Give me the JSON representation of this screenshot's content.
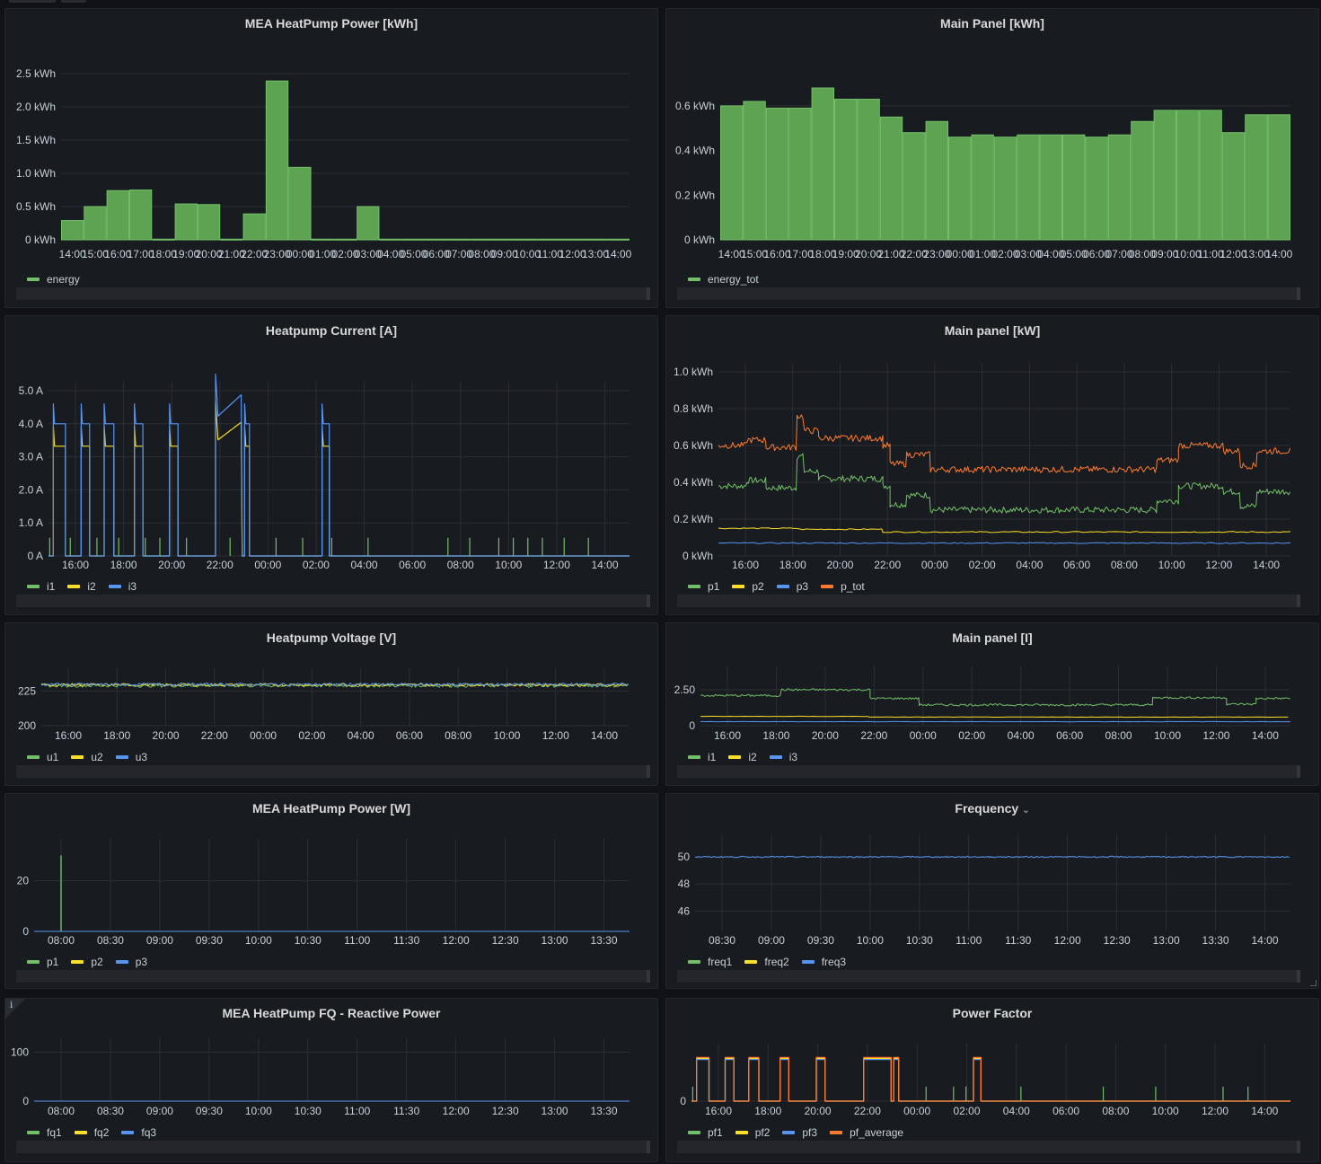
{
  "colors": {
    "green": "#73bf69",
    "yellow": "#fade2a",
    "blue": "#5794f2",
    "orange": "#ff7a2f",
    "barFill": "#5da352",
    "barStroke": "#73bf69",
    "grid": "#2c2e33"
  },
  "panels": [
    {
      "title": "MEA HeatPump Power [kWh]",
      "chart_data": {
        "type": "bar",
        "title": "MEA HeatPump Power [kWh]",
        "unit": "kWh",
        "ylim": [
          0,
          2.5
        ],
        "yticks": [
          "0 kWh",
          "0.5 kWh",
          "1.0 kWh",
          "1.5 kWh",
          "2.0 kWh",
          "2.5 kWh"
        ],
        "categories": [
          "14:00",
          "15:00",
          "16:00",
          "17:00",
          "18:00",
          "19:00",
          "20:00",
          "21:00",
          "22:00",
          "23:00",
          "00:00",
          "01:00",
          "02:00",
          "03:00",
          "04:00",
          "05:00",
          "06:00",
          "07:00",
          "08:00",
          "09:00",
          "10:00",
          "11:00",
          "12:00",
          "13:00",
          "14:00"
        ],
        "series": [
          {
            "name": "energy",
            "values": [
              0.29,
              0.5,
              0.74,
              0.75,
              0.01,
              0.54,
              0.53,
              0.01,
              0.39,
              2.39,
              1.09,
              0.01,
              0.01,
              0.5,
              0.01,
              0.01,
              0.01,
              0.01,
              0.01,
              0.01,
              0.01,
              0.01,
              0.01,
              0.01,
              0.01
            ]
          }
        ],
        "grid": true,
        "legend": "bottom-left"
      }
    },
    {
      "title": "Main Panel [kWh]",
      "chart_data": {
        "type": "bar",
        "title": "Main Panel [kWh]",
        "unit": "kWh",
        "ylim": [
          0,
          0.68
        ],
        "yticks": [
          "0 kWh",
          "0.2 kWh",
          "0.4 kWh",
          "0.6 kWh"
        ],
        "categories": [
          "14:00",
          "15:00",
          "16:00",
          "17:00",
          "18:00",
          "19:00",
          "20:00",
          "21:00",
          "22:00",
          "23:00",
          "00:00",
          "01:00",
          "02:00",
          "03:00",
          "04:00",
          "05:00",
          "06:00",
          "07:00",
          "08:00",
          "09:00",
          "10:00",
          "11:00",
          "12:00",
          "13:00",
          "14:00"
        ],
        "series": [
          {
            "name": "energy_tot",
            "values": [
              0.6,
              0.62,
              0.59,
              0.59,
              0.68,
              0.63,
              0.63,
              0.55,
              0.48,
              0.53,
              0.46,
              0.47,
              0.46,
              0.47,
              0.47,
              0.47,
              0.46,
              0.47,
              0.53,
              0.58,
              0.58,
              0.58,
              0.48,
              0.56,
              0.56
            ]
          }
        ],
        "grid": true,
        "legend": "bottom-left"
      }
    },
    {
      "title": "Heatpump Current [A]",
      "chart_data": {
        "type": "line",
        "title": "Heatpump Current [A]",
        "ylim": [
          0,
          5.0
        ],
        "yticks": [
          "0 A",
          "1.0 A",
          "2.0 A",
          "3.0 A",
          "4.0 A",
          "5.0 A"
        ],
        "xticks": [
          "16:00",
          "18:00",
          "20:00",
          "22:00",
          "00:00",
          "02:00",
          "04:00",
          "06:00",
          "08:00",
          "10:00",
          "12:00",
          "14:00"
        ],
        "series": [
          {
            "name": "i1"
          },
          {
            "name": "i2"
          },
          {
            "name": "i3"
          }
        ],
        "grid": true,
        "legend": "bottom-left"
      }
    },
    {
      "title": "Main panel [kW]",
      "chart_data": {
        "type": "line",
        "title": "Main panel [kW]",
        "ylim": [
          0,
          1.0
        ],
        "yticks": [
          "0 kWh",
          "0.2 kWh",
          "0.4 kWh",
          "0.6 kWh",
          "0.8 kWh",
          "1.0 kWh"
        ],
        "xticks": [
          "16:00",
          "18:00",
          "20:00",
          "22:00",
          "00:00",
          "02:00",
          "04:00",
          "06:00",
          "08:00",
          "10:00",
          "12:00",
          "14:00"
        ],
        "series": [
          {
            "name": "p1"
          },
          {
            "name": "p2"
          },
          {
            "name": "p3"
          },
          {
            "name": "p_tot"
          }
        ],
        "grid": true,
        "legend": "bottom-left"
      }
    },
    {
      "title": "Heatpump Voltage [V]",
      "chart_data": {
        "type": "line",
        "title": "Heatpump Voltage [V]",
        "ylim": [
          200,
          235
        ],
        "yticks": [
          "200",
          "225"
        ],
        "xticks": [
          "16:00",
          "18:00",
          "20:00",
          "22:00",
          "00:00",
          "02:00",
          "04:00",
          "06:00",
          "08:00",
          "10:00",
          "12:00",
          "14:00"
        ],
        "series": [
          {
            "name": "u1"
          },
          {
            "name": "u2"
          },
          {
            "name": "u3"
          }
        ],
        "grid": true,
        "legend": "bottom-left"
      }
    },
    {
      "title": "Main panel [I]",
      "chart_data": {
        "type": "line",
        "title": "Main panel [I]",
        "ylim": [
          0,
          3.5
        ],
        "yticks": [
          "0",
          "2.50"
        ],
        "xticks": [
          "16:00",
          "18:00",
          "20:00",
          "22:00",
          "00:00",
          "02:00",
          "04:00",
          "06:00",
          "08:00",
          "10:00",
          "12:00",
          "14:00"
        ],
        "series": [
          {
            "name": "i1"
          },
          {
            "name": "i2"
          },
          {
            "name": "i3"
          }
        ],
        "grid": true,
        "legend": "bottom-left"
      }
    },
    {
      "title": "MEA HeatPump Power [W]",
      "chart_data": {
        "type": "line",
        "title": "MEA HeatPump Power [W]",
        "ylim": [
          0,
          33
        ],
        "yticks": [
          "0",
          "20"
        ],
        "xticks": [
          "08:00",
          "08:30",
          "09:00",
          "09:30",
          "10:00",
          "10:30",
          "11:00",
          "11:30",
          "12:00",
          "12:30",
          "13:00",
          "13:30"
        ],
        "series": [
          {
            "name": "p1"
          },
          {
            "name": "p2"
          },
          {
            "name": "p3"
          }
        ],
        "grid": true,
        "legend": "bottom-left"
      }
    },
    {
      "title": "Frequency",
      "chart_data": {
        "type": "line",
        "title": "Frequency",
        "ylim": [
          44.5,
          51
        ],
        "yticks": [
          "46",
          "48",
          "50"
        ],
        "xticks": [
          "08:30",
          "09:00",
          "09:30",
          "10:00",
          "10:30",
          "11:00",
          "11:30",
          "12:00",
          "12:30",
          "13:00",
          "13:30",
          "14:00"
        ],
        "series": [
          {
            "name": "freq1"
          },
          {
            "name": "freq2"
          },
          {
            "name": "freq3"
          }
        ],
        "grid": true,
        "legend": "bottom-left"
      }
    },
    {
      "title": "MEA HeatPump FQ - Reactive Power",
      "chart_data": {
        "type": "line",
        "title": "MEA HeatPump FQ - Reactive Power",
        "ylim": [
          0,
          110
        ],
        "yticks": [
          "0",
          "100"
        ],
        "xticks": [
          "08:00",
          "08:30",
          "09:00",
          "09:30",
          "10:00",
          "10:30",
          "11:00",
          "11:30",
          "12:00",
          "12:30",
          "13:00",
          "13:30"
        ],
        "series": [
          {
            "name": "fq1"
          },
          {
            "name": "fq2"
          },
          {
            "name": "fq3"
          }
        ],
        "grid": true,
        "legend": "bottom-left"
      }
    },
    {
      "title": "Power Factor",
      "chart_data": {
        "type": "line",
        "title": "Power Factor",
        "ylim": [
          0,
          1.0
        ],
        "yticks": [
          "0"
        ],
        "xticks": [
          "16:00",
          "18:00",
          "20:00",
          "22:00",
          "00:00",
          "02:00",
          "04:00",
          "06:00",
          "08:00",
          "10:00",
          "12:00",
          "14:00"
        ],
        "series": [
          {
            "name": "pf1"
          },
          {
            "name": "pf2"
          },
          {
            "name": "pf3"
          },
          {
            "name": "pf_average"
          }
        ],
        "grid": true,
        "legend": "bottom-left"
      }
    }
  ]
}
